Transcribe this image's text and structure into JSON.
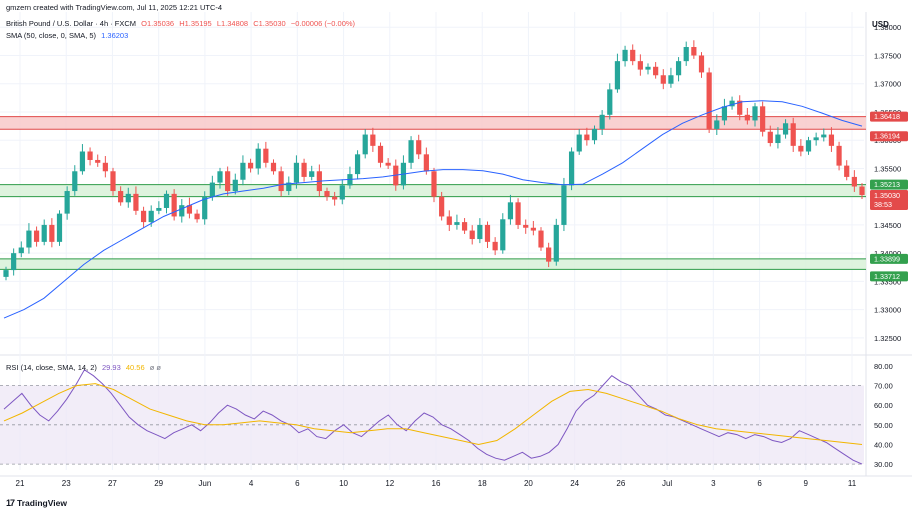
{
  "header": {
    "attribution": "gmzern created with TradingView.com, Jul 11, 2025 12:21 UTC-4",
    "symbol": "British Pound / U.S. Dollar · 4h · FXCM",
    "o": "O1.35036",
    "h": "H1.35195",
    "l": "L1.34808",
    "c": "C1.35030",
    "chg": "−0.00006 (−0.00%)",
    "sma_label": "SMA (50, close, 0, SMA, 5)",
    "sma_value": "1.36203",
    "rsi_label": "RSI (14, close, SMA, 14, 2)",
    "rsi_value": "29.93",
    "rsi_ma_value": "40.56",
    "rsi_extra": "ø ø"
  },
  "currency": "USD",
  "logo": {
    "mark": "17",
    "text": "TradingView"
  },
  "colors": {
    "up": "#26a69a",
    "down": "#ef5350",
    "sma": "#2962ff",
    "rsi": "#7e57c2",
    "rsi_ma": "#f2b600",
    "res_zone": "#f8c9c9",
    "sup_zone": "#d8f1d8"
  },
  "chart_data": [
    {
      "type": "candlestick",
      "title": "British Pound / U.S. Dollar · 4h · FXCM",
      "x_ticks": [
        "21",
        "23",
        "27",
        "29",
        "Jun",
        "4",
        "6",
        "10",
        "12",
        "16",
        "18",
        "20",
        "24",
        "26",
        "Jul",
        "3",
        "6",
        "9",
        "11"
      ],
      "y_ticks": [
        "1.38000",
        "1.37500",
        "1.37000",
        "1.36500",
        "1.36000",
        "1.35500",
        "1.35000",
        "1.34500",
        "1.34000",
        "1.33500",
        "1.33000",
        "1.32500"
      ],
      "ylim": [
        1.3225,
        1.3827
      ],
      "close_path": [
        1.337,
        1.34,
        1.341,
        1.344,
        1.342,
        1.345,
        1.342,
        1.347,
        1.351,
        1.3545,
        1.358,
        1.3565,
        1.356,
        1.3545,
        1.351,
        1.349,
        1.3505,
        1.3475,
        1.3455,
        1.3475,
        1.348,
        1.3505,
        1.3465,
        1.3485,
        1.347,
        1.346,
        1.35,
        1.3525,
        1.3545,
        1.351,
        1.353,
        1.356,
        1.355,
        1.3585,
        1.356,
        1.3545,
        1.351,
        1.3525,
        1.356,
        1.3535,
        1.3545,
        1.351,
        1.35,
        1.3495,
        1.352,
        1.354,
        1.3575,
        1.361,
        1.359,
        1.356,
        1.3555,
        1.352,
        1.356,
        1.36,
        1.3575,
        1.3545,
        1.35,
        1.3465,
        1.345,
        1.3455,
        1.344,
        1.3425,
        1.345,
        1.342,
        1.3405,
        1.346,
        1.349,
        1.345,
        1.3445,
        1.344,
        1.341,
        1.3385,
        1.345,
        1.352,
        1.358,
        1.361,
        1.36,
        1.362,
        1.3645,
        1.369,
        1.374,
        1.376,
        1.374,
        1.3725,
        1.373,
        1.3715,
        1.37,
        1.3715,
        1.374,
        1.3765,
        1.375,
        1.372,
        1.362,
        1.3635,
        1.366,
        1.367,
        1.3645,
        1.3635,
        1.366,
        1.3615,
        1.3595,
        1.361,
        1.363,
        1.359,
        1.358,
        1.36,
        1.3605,
        1.361,
        1.359,
        1.3555,
        1.3535,
        1.3518,
        1.3503
      ],
      "sma_path": [
        1.3285,
        1.33,
        1.332,
        1.335,
        1.338,
        1.3405,
        1.3425,
        1.3445,
        1.3465,
        1.348,
        1.3495,
        1.3505,
        1.351,
        1.3515,
        1.3522,
        1.3525,
        1.3528,
        1.353,
        1.3532,
        1.3535,
        1.354,
        1.3545,
        1.3548,
        1.3548,
        1.3546,
        1.354,
        1.353,
        1.3525,
        1.3521,
        1.3522,
        1.354,
        1.356,
        1.3585,
        1.361,
        1.363,
        1.3645,
        1.3658,
        1.3668,
        1.367,
        1.3668,
        1.366,
        1.3648,
        1.3635,
        1.3625
      ],
      "zones": [
        {
          "label_top": "1.36418",
          "label_bottom": "1.36194",
          "top": 1.36418,
          "bottom": 1.36194,
          "kind": "resistance"
        },
        {
          "label_top": "1.35213",
          "label_bottom": "1.35000",
          "top": 1.35213,
          "bottom": 1.35,
          "kind": "support"
        },
        {
          "label_top": "1.33899",
          "label_bottom": "1.33712",
          "top": 1.33899,
          "bottom": 1.33712,
          "kind": "support"
        }
      ],
      "price_tag": {
        "value": "1.35030",
        "countdown": "38:53"
      }
    },
    {
      "type": "line",
      "title": "RSI (14, close, SMA, 14, 2)",
      "y_ticks": [
        "80.00",
        "70.00",
        "60.00",
        "50.00",
        "40.00",
        "30.00"
      ],
      "ylim": [
        27,
        83
      ],
      "band": [
        30,
        70
      ],
      "rsi": [
        58,
        62,
        66,
        60,
        55,
        52,
        57,
        63,
        70,
        78,
        75,
        71,
        66,
        60,
        54,
        50,
        47,
        45,
        43,
        46,
        48,
        50,
        47,
        51,
        56,
        60,
        58,
        55,
        53,
        57,
        55,
        52,
        50,
        46,
        48,
        44,
        43,
        47,
        50,
        46,
        44,
        48,
        52,
        55,
        50,
        47,
        52,
        56,
        54,
        50,
        48,
        45,
        42,
        38,
        35,
        33,
        32,
        34,
        36,
        33,
        34,
        36,
        40,
        48,
        57,
        62,
        65,
        70,
        75,
        72,
        70,
        65,
        60,
        58,
        55,
        54,
        52,
        50,
        48,
        46,
        44,
        46,
        45,
        43,
        45,
        44,
        42,
        41,
        43,
        47,
        45,
        43,
        41,
        38,
        35,
        32,
        30
      ],
      "rsi_ma": [
        52,
        56,
        61,
        66,
        70,
        71,
        68,
        63,
        58,
        55,
        52,
        50,
        50,
        51,
        52,
        51,
        50,
        48,
        47,
        46,
        47,
        48,
        48,
        46,
        44,
        42,
        40,
        42,
        48,
        55,
        62,
        67,
        68,
        66,
        63,
        60,
        57,
        53,
        50,
        48,
        47,
        46,
        45,
        44,
        43,
        42,
        41,
        40
      ]
    }
  ]
}
